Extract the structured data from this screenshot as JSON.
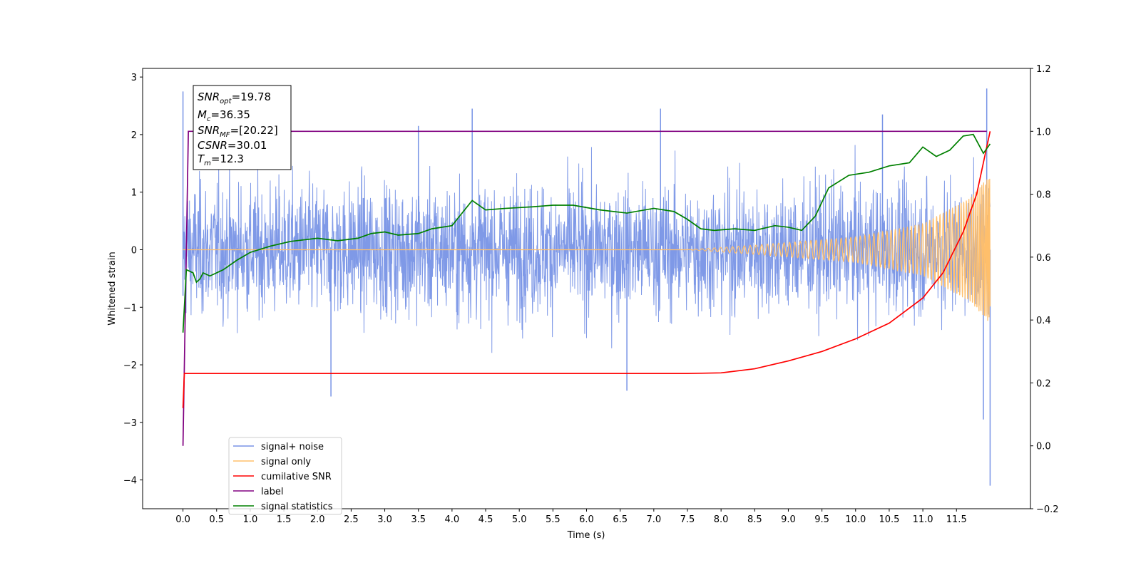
{
  "chart_data": {
    "type": "line",
    "title": "",
    "xlabel": "Time (s)",
    "ylabel": "Whitened strain",
    "xlim": [
      -0.6,
      12.6
    ],
    "ylim": [
      -4.5,
      3.15
    ],
    "y2lim": [
      -0.2,
      1.2
    ],
    "grid": false,
    "legend_position": "lower-left",
    "x_ticks": [
      "0.0",
      "0.5",
      "1.0",
      "1.5",
      "2.0",
      "2.5",
      "3.0",
      "3.5",
      "4.0",
      "4.5",
      "5.0",
      "5.5",
      "6.0",
      "6.5",
      "7.0",
      "7.5",
      "8.0",
      "8.5",
      "9.0",
      "9.5",
      "10.0",
      "10.5",
      "11.0",
      "11.5"
    ],
    "y_ticks": [
      "3",
      "2",
      "1",
      "0",
      "−1",
      "−2",
      "−3",
      "−4"
    ],
    "y2_ticks": [
      "1.2",
      "1.0",
      "0.8",
      "0.6",
      "0.4",
      "0.2",
      "0.0",
      "−0.2"
    ],
    "annotation": {
      "snr_opt": {
        "sym": "SNR",
        "sub": "opt",
        "value": "=19.78"
      },
      "mc": {
        "sym": "M",
        "sub": "c",
        "value": "=36.35"
      },
      "snr_mf": {
        "sym": "SNR",
        "sub": "MF",
        "value": "=[20.22]"
      },
      "csnr": {
        "sym": "CSNR",
        "sub": "",
        "value": "=30.01"
      },
      "tm": {
        "sym": "T",
        "sub": "m",
        "value": "=12.3"
      }
    },
    "series": [
      {
        "name": "signal+ noise",
        "color": "#7894e6",
        "axis": "left",
        "amplitude_envelope": 1.6,
        "spikes": [
          [
            0.0,
            2.75
          ],
          [
            0.0,
            -0.8
          ],
          [
            3.5,
            2.15
          ],
          [
            4.3,
            2.45
          ],
          [
            7.1,
            2.45
          ],
          [
            2.2,
            -2.55
          ],
          [
            6.6,
            -2.45
          ],
          [
            10.4,
            2.35
          ],
          [
            11.95,
            2.8
          ],
          [
            12.0,
            -4.1
          ],
          [
            11.9,
            -2.95
          ]
        ]
      },
      {
        "name": "signal only",
        "color": "#ffbf6b",
        "axis": "left",
        "amplitude_envelope": [
          [
            0.0,
            0.0
          ],
          [
            7.5,
            0.0
          ],
          [
            8.5,
            0.08
          ],
          [
            10.0,
            0.22
          ],
          [
            11.0,
            0.45
          ],
          [
            11.7,
            0.9
          ],
          [
            12.0,
            1.3
          ]
        ]
      },
      {
        "name": "cumilative SNR",
        "color": "#ff0000",
        "axis": "right",
        "points": [
          [
            0.0,
            0.12
          ],
          [
            0.02,
            0.23
          ],
          [
            7.5,
            0.23
          ],
          [
            8.0,
            0.232
          ],
          [
            8.5,
            0.245
          ],
          [
            9.0,
            0.27
          ],
          [
            9.5,
            0.3
          ],
          [
            10.0,
            0.34
          ],
          [
            10.5,
            0.39
          ],
          [
            11.0,
            0.47
          ],
          [
            11.3,
            0.55
          ],
          [
            11.6,
            0.68
          ],
          [
            11.8,
            0.8
          ],
          [
            11.95,
            0.95
          ],
          [
            12.0,
            1.0
          ]
        ]
      },
      {
        "name": "label",
        "color": "#800080",
        "axis": "right",
        "points": [
          [
            0.0,
            0.0
          ],
          [
            0.08,
            1.0
          ],
          [
            11.95,
            1.0
          ]
        ]
      },
      {
        "name": "signal statistics",
        "color": "#008000",
        "axis": "right",
        "points": [
          [
            0.0,
            0.36
          ],
          [
            0.05,
            0.56
          ],
          [
            0.15,
            0.55
          ],
          [
            0.2,
            0.52
          ],
          [
            0.25,
            0.53
          ],
          [
            0.3,
            0.55
          ],
          [
            0.4,
            0.54
          ],
          [
            0.6,
            0.56
          ],
          [
            0.8,
            0.59
          ],
          [
            1.0,
            0.615
          ],
          [
            1.3,
            0.635
          ],
          [
            1.6,
            0.65
          ],
          [
            2.0,
            0.66
          ],
          [
            2.3,
            0.652
          ],
          [
            2.6,
            0.66
          ],
          [
            2.8,
            0.675
          ],
          [
            3.0,
            0.68
          ],
          [
            3.2,
            0.67
          ],
          [
            3.5,
            0.675
          ],
          [
            3.7,
            0.69
          ],
          [
            4.0,
            0.7
          ],
          [
            4.3,
            0.78
          ],
          [
            4.5,
            0.75
          ],
          [
            4.8,
            0.755
          ],
          [
            5.2,
            0.76
          ],
          [
            5.5,
            0.765
          ],
          [
            5.8,
            0.765
          ],
          [
            6.2,
            0.75
          ],
          [
            6.6,
            0.74
          ],
          [
            7.0,
            0.755
          ],
          [
            7.3,
            0.745
          ],
          [
            7.5,
            0.72
          ],
          [
            7.7,
            0.69
          ],
          [
            7.9,
            0.685
          ],
          [
            8.2,
            0.69
          ],
          [
            8.5,
            0.685
          ],
          [
            8.8,
            0.7
          ],
          [
            9.0,
            0.695
          ],
          [
            9.2,
            0.685
          ],
          [
            9.4,
            0.73
          ],
          [
            9.6,
            0.82
          ],
          [
            9.9,
            0.86
          ],
          [
            10.2,
            0.87
          ],
          [
            10.5,
            0.89
          ],
          [
            10.8,
            0.9
          ],
          [
            11.0,
            0.95
          ],
          [
            11.2,
            0.92
          ],
          [
            11.4,
            0.94
          ],
          [
            11.6,
            0.985
          ],
          [
            11.75,
            0.99
          ],
          [
            11.9,
            0.93
          ],
          [
            12.0,
            0.96
          ]
        ]
      }
    ]
  }
}
